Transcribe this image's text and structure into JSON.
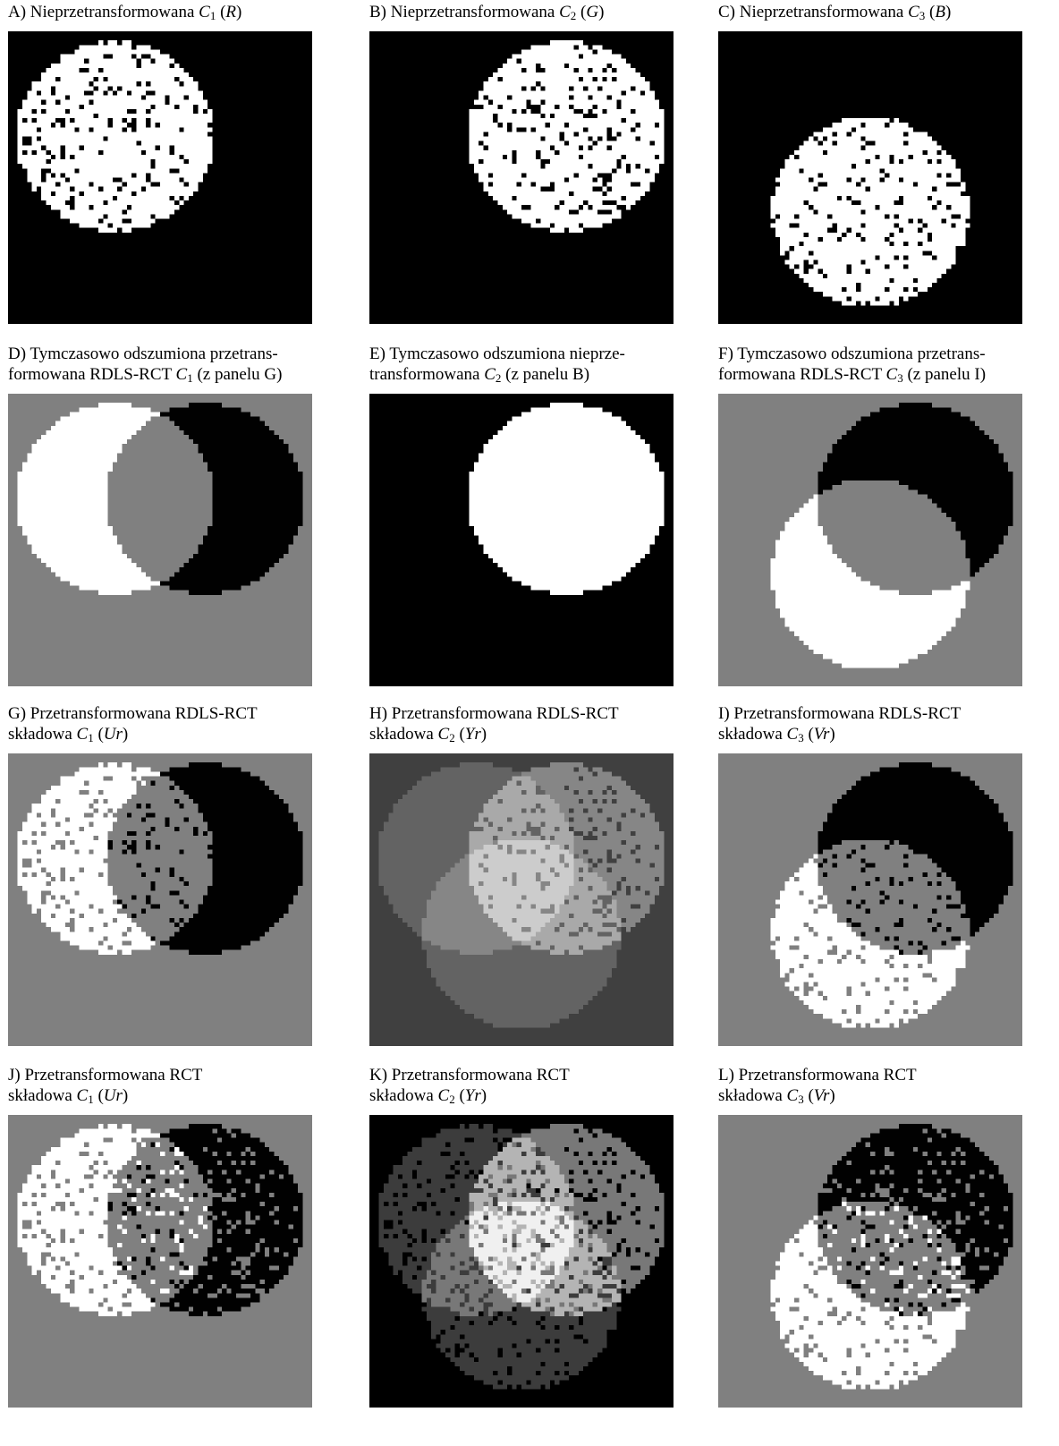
{
  "panels": [
    {
      "lines": [
        [
          {
            "text": "A) Nieprzetransformowana "
          },
          {
            "text": "C",
            "style": "italic"
          },
          {
            "text": "1",
            "style": "sub"
          },
          {
            "text": " ("
          },
          {
            "text": "R",
            "style": "italic"
          },
          {
            "text": ")"
          }
        ]
      ]
    },
    {
      "lines": [
        [
          {
            "text": "B) Nieprzetransformowana "
          },
          {
            "text": "C",
            "style": "italic"
          },
          {
            "text": "2",
            "style": "sub"
          },
          {
            "text": " ("
          },
          {
            "text": "G",
            "style": "italic"
          },
          {
            "text": ")"
          }
        ]
      ]
    },
    {
      "lines": [
        [
          {
            "text": "C) Nieprzetransformowana "
          },
          {
            "text": "C",
            "style": "italic"
          },
          {
            "text": "3",
            "style": "sub"
          },
          {
            "text": " ("
          },
          {
            "text": "B",
            "style": "italic"
          },
          {
            "text": ")"
          }
        ]
      ]
    },
    {
      "lines": [
        [
          {
            "text": "D) Tymczasowo odszumiona przetrans-"
          }
        ],
        [
          {
            "text": "formowana RDLS-RCT "
          },
          {
            "text": "C",
            "style": "italic"
          },
          {
            "text": "1",
            "style": "sub"
          },
          {
            "text": " (z panelu G)"
          }
        ]
      ]
    },
    {
      "lines": [
        [
          {
            "text": "E) Tymczasowo odszumiona nieprze-"
          }
        ],
        [
          {
            "text": "transformowana "
          },
          {
            "text": "C",
            "style": "italic"
          },
          {
            "text": "2",
            "style": "sub"
          },
          {
            "text": " (z panelu B)"
          }
        ]
      ]
    },
    {
      "lines": [
        [
          {
            "text": "F) Tymczasowo odszumiona przetrans-"
          }
        ],
        [
          {
            "text": "formowana RDLS-RCT "
          },
          {
            "text": "C",
            "style": "italic"
          },
          {
            "text": "3",
            "style": "sub"
          },
          {
            "text": " (z panelu I)"
          }
        ]
      ]
    },
    {
      "lines": [
        [
          {
            "text": "G) Przetransformowana RDLS-RCT"
          }
        ],
        [
          {
            "text": "składowa "
          },
          {
            "text": "C",
            "style": "italic"
          },
          {
            "text": "1",
            "style": "sub"
          },
          {
            "text": " ("
          },
          {
            "text": "Ur",
            "style": "italic"
          },
          {
            "text": ")"
          }
        ]
      ]
    },
    {
      "lines": [
        [
          {
            "text": "H) Przetransformowana RDLS-RCT"
          }
        ],
        [
          {
            "text": "składowa "
          },
          {
            "text": "C",
            "style": "italic"
          },
          {
            "text": "2",
            "style": "sub"
          },
          {
            "text": " ("
          },
          {
            "text": "Yr",
            "style": "italic"
          },
          {
            "text": ")"
          }
        ]
      ]
    },
    {
      "lines": [
        [
          {
            "text": "I) Przetransformowana RDLS-RCT"
          }
        ],
        [
          {
            "text": "składowa "
          },
          {
            "text": "C",
            "style": "italic"
          },
          {
            "text": "3",
            "style": "sub"
          },
          {
            "text": " ("
          },
          {
            "text": "Vr",
            "style": "italic"
          },
          {
            "text": ")"
          }
        ]
      ]
    },
    {
      "lines": [
        [
          {
            "text": "J) Przetransformowana RCT"
          }
        ],
        [
          {
            "text": "składowa "
          },
          {
            "text": "C",
            "style": "italic"
          },
          {
            "text": "1",
            "style": "sub"
          },
          {
            "text": " ("
          },
          {
            "text": "Ur",
            "style": "italic"
          },
          {
            "text": ")"
          }
        ]
      ]
    },
    {
      "lines": [
        [
          {
            "text": "K) Przetransformowana RCT"
          }
        ],
        [
          {
            "text": "składowa "
          },
          {
            "text": "C",
            "style": "italic"
          },
          {
            "text": "2",
            "style": "sub"
          },
          {
            "text": " ("
          },
          {
            "text": "Yr",
            "style": "italic"
          },
          {
            "text": ")"
          }
        ]
      ]
    },
    {
      "lines": [
        [
          {
            "text": "L) Przetransformowana RCT"
          }
        ],
        [
          {
            "text": "składowa "
          },
          {
            "text": "C",
            "style": "italic"
          },
          {
            "text": "3",
            "style": "sub"
          },
          {
            "text": " ("
          },
          {
            "text": "Vr",
            "style": "italic"
          },
          {
            "text": ")"
          }
        ]
      ]
    }
  ]
}
